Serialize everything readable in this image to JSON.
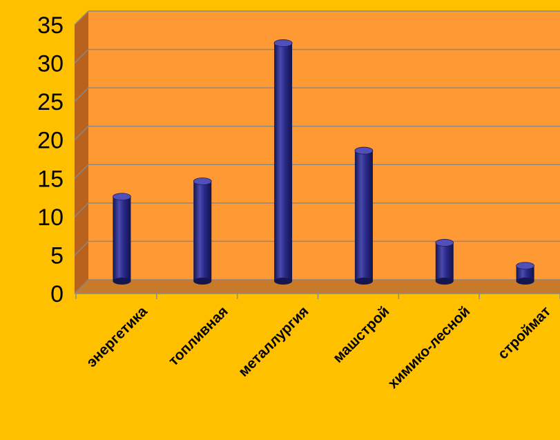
{
  "colors": {
    "page_background": "#FFC000",
    "plot_wall": "#FF9933",
    "side_wall": "#B8621E",
    "floor": "#C77B2A",
    "bar": "#23237A",
    "bar_highlight": "#5050B8",
    "grid": "#888888"
  },
  "chart_data": {
    "type": "bar",
    "bar_shape": "cylinder-3d",
    "categories": [
      "энергетика",
      "топливная",
      "металлургия",
      "машстрой",
      "химико-лесной",
      "строймат"
    ],
    "values": [
      11,
      13,
      31,
      17,
      5,
      2
    ],
    "ylim": [
      0,
      35
    ],
    "yticks": [
      "0",
      "5",
      "10",
      "15",
      "20",
      "25",
      "30",
      "35"
    ],
    "grid": true,
    "legend": "none",
    "title": "",
    "xlabel": "",
    "ylabel": ""
  }
}
